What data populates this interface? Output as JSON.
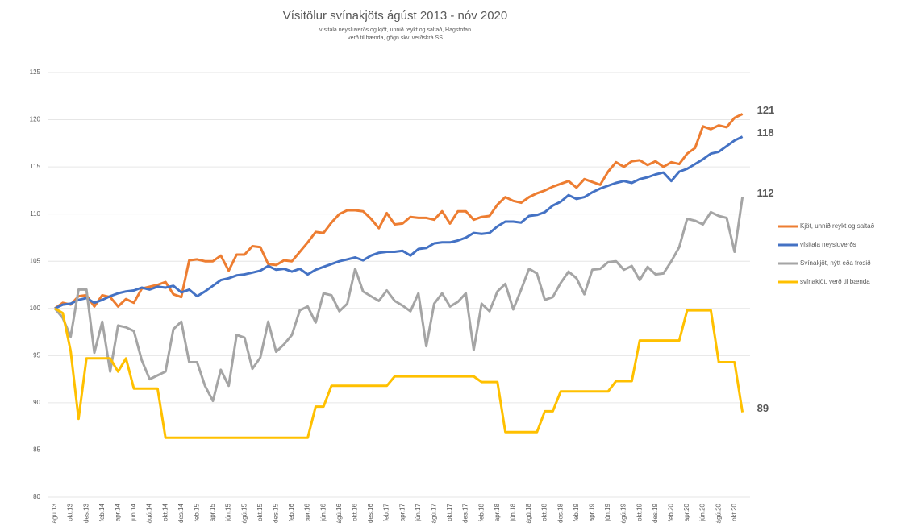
{
  "chart_data": {
    "type": "line",
    "title": "Vísitölur svínakjöts ágúst 2013 - nóv 2020",
    "subtitle": [
      "vísitala neysluverðs og kjöt, unnið reykt og saltað, Hagstofan",
      "verð til bænda, gögn skv. verðskrá SS"
    ],
    "categories": [
      "ágú.13",
      null,
      "okt.13",
      null,
      "des.13",
      null,
      "feb.14",
      null,
      "apr.14",
      null,
      "jún.14",
      null,
      "ágú.14",
      null,
      "okt.14",
      null,
      "des.14",
      null,
      "feb.15",
      null,
      "apr.15",
      null,
      "jún.15",
      null,
      "ágú.15",
      null,
      "okt.15",
      null,
      "des.15",
      null,
      "feb.16",
      null,
      "apr.16",
      null,
      "jún.16",
      null,
      "ágú.16",
      null,
      "okt.16",
      null,
      "des.16",
      null,
      "feb.17",
      null,
      "apr.17",
      null,
      "jún.17",
      null,
      "ágú.17",
      null,
      "okt.17",
      null,
      "des.17",
      null,
      "feb.18",
      null,
      "apr.18",
      null,
      "jún.18",
      null,
      "ágú.18",
      null,
      "okt.18",
      null,
      "des.18",
      null,
      "feb.19",
      null,
      "apr.19",
      null,
      "jún.19",
      null,
      "ágú.19",
      null,
      "okt.19",
      null,
      "des.19",
      null,
      "feb.20",
      null,
      "apr.20",
      null,
      "jún.20",
      null,
      "ágú.20",
      null,
      "okt.20",
      null
    ],
    "series": [
      {
        "name": "Kjöt, unnið reykt og saltað",
        "color": "#ed7d31",
        "end_label": "121",
        "values": [
          100,
          100.6,
          100.4,
          101.3,
          101.4,
          100.2,
          101.4,
          101.2,
          100.2,
          101,
          100.6,
          102.1,
          102.3,
          102.5,
          102.8,
          101.5,
          101.2,
          105.1,
          105.2,
          105,
          105,
          105.6,
          104,
          105.7,
          105.7,
          106.6,
          106.5,
          104.7,
          104.6,
          105.1,
          105,
          106,
          107,
          108.1,
          108,
          109.1,
          110,
          110.4,
          110.4,
          110.3,
          109.5,
          108.5,
          110.1,
          108.9,
          109,
          109.7,
          109.6,
          109.6,
          109.4,
          110.3,
          109,
          110.3,
          110.3,
          109.4,
          109.7,
          109.8,
          111,
          111.8,
          111.4,
          111.2,
          111.8,
          112.2,
          112.5,
          112.9,
          113.2,
          113.5,
          112.8,
          113.7,
          113.4,
          113.1,
          114.5,
          115.5,
          115,
          115.6,
          115.7,
          115.2,
          115.6,
          115,
          115.5,
          115.3,
          116.4,
          117,
          119.3,
          119,
          119.4,
          119.2,
          120.2,
          120.6
        ]
      },
      {
        "name": "vísitala neysluverðs",
        "color": "#4472c4",
        "end_label": "118",
        "values": [
          100,
          100.4,
          100.5,
          100.9,
          101.1,
          100.6,
          100.9,
          101.3,
          101.6,
          101.8,
          101.9,
          102.2,
          102,
          102.3,
          102.2,
          102.4,
          101.7,
          102,
          101.3,
          101.8,
          102.4,
          103,
          103.2,
          103.5,
          103.6,
          103.8,
          104,
          104.5,
          104.1,
          104.2,
          103.9,
          104.2,
          103.6,
          104.1,
          104.4,
          104.7,
          105,
          105.2,
          105.4,
          105.1,
          105.6,
          105.9,
          106,
          106,
          106.1,
          105.6,
          106.3,
          106.4,
          106.9,
          107,
          107,
          107.2,
          107.5,
          108,
          107.9,
          108,
          108.7,
          109.2,
          109.2,
          109.1,
          109.8,
          109.9,
          110.2,
          110.9,
          111.3,
          112,
          111.6,
          111.8,
          112.3,
          112.7,
          113,
          113.3,
          113.5,
          113.3,
          113.7,
          113.9,
          114.2,
          114.4,
          113.5,
          114.5,
          114.8,
          115.3,
          115.8,
          116.4,
          116.6,
          117.2,
          117.8,
          118.2
        ]
      },
      {
        "name": "Svínakjöt, nýtt eða frosið",
        "color": "#a5a5a5",
        "end_label": "112",
        "values": [
          100,
          99,
          97,
          102,
          102,
          95.3,
          98.6,
          93.3,
          98.2,
          98,
          97.6,
          94.5,
          92.5,
          92.9,
          93.3,
          97.8,
          98.6,
          94.3,
          94.3,
          91.8,
          90.2,
          93.5,
          91.8,
          97.2,
          96.9,
          93.6,
          94.8,
          98.6,
          95.4,
          96.2,
          97.2,
          99.8,
          100.2,
          98.5,
          101.6,
          101.4,
          99.7,
          100.5,
          104.2,
          101.8,
          101.3,
          100.8,
          101.9,
          100.8,
          100.3,
          99.7,
          101.6,
          96,
          100.5,
          101.6,
          100.2,
          100.7,
          101.6,
          95.6,
          100.5,
          99.7,
          101.8,
          102.6,
          99.9,
          102,
          104.2,
          103.7,
          100.9,
          101.2,
          102.7,
          103.9,
          103.2,
          101.5,
          104.1,
          104.2,
          104.9,
          105,
          104.1,
          104.5,
          103,
          104.4,
          103.6,
          103.7,
          105,
          106.5,
          109.5,
          109.3,
          108.9,
          110.2,
          109.8,
          109.6,
          106,
          111.8
        ]
      },
      {
        "name": "svínakjöt, verð til bænda",
        "color": "#ffc000",
        "end_label": "89",
        "values": [
          100,
          99.5,
          95.5,
          88.3,
          94.7,
          94.7,
          94.7,
          94.7,
          93.3,
          94.7,
          91.5,
          91.5,
          91.5,
          91.5,
          86.3,
          86.3,
          86.3,
          86.3,
          86.3,
          86.3,
          86.3,
          86.3,
          86.3,
          86.3,
          86.3,
          86.3,
          86.3,
          86.3,
          86.3,
          86.3,
          86.3,
          86.3,
          86.3,
          89.6,
          89.6,
          91.8,
          91.8,
          91.8,
          91.8,
          91.8,
          91.8,
          91.8,
          91.8,
          92.8,
          92.8,
          92.8,
          92.8,
          92.8,
          92.8,
          92.8,
          92.8,
          92.8,
          92.8,
          92.8,
          92.2,
          92.2,
          92.2,
          86.9,
          86.9,
          86.9,
          86.9,
          86.9,
          89.1,
          89.1,
          91.2,
          91.2,
          91.2,
          91.2,
          91.2,
          91.2,
          91.2,
          92.3,
          92.3,
          92.3,
          96.6,
          96.6,
          96.6,
          96.6,
          96.6,
          96.6,
          99.8,
          99.8,
          99.8,
          99.8,
          94.3,
          94.3,
          94.3,
          89
        ]
      }
    ],
    "ylim": [
      80,
      125
    ],
    "yticks": [
      80,
      85,
      90,
      95,
      100,
      105,
      110,
      115,
      120,
      125
    ],
    "grid": true,
    "legend": "right"
  }
}
